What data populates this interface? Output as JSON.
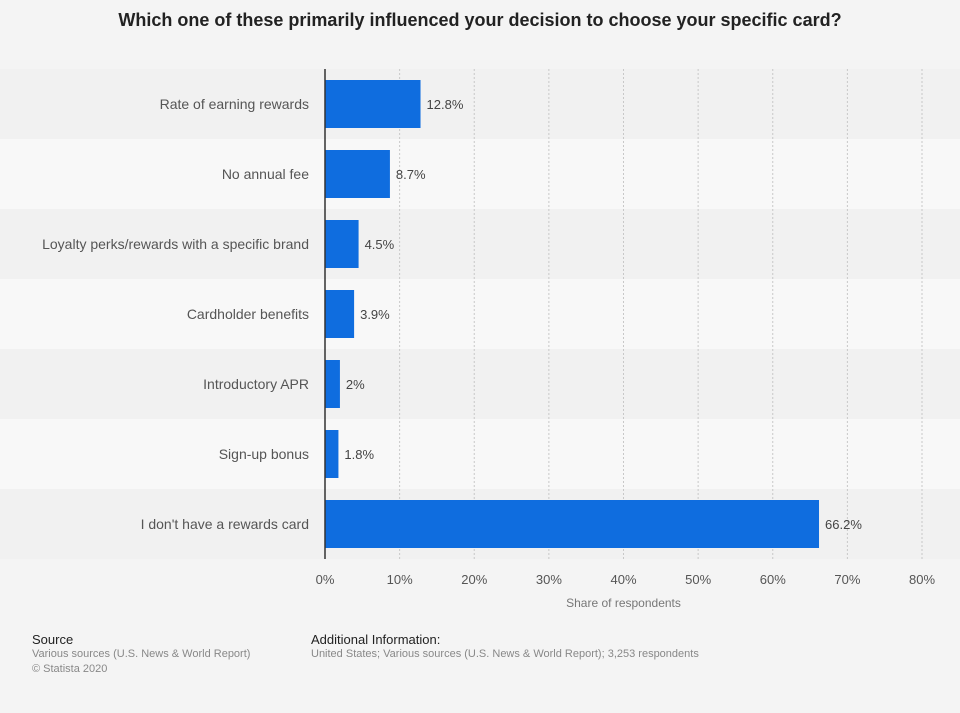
{
  "chart_data": {
    "type": "bar",
    "orientation": "horizontal",
    "title": "Which one of these primarily influenced your decision to choose your specific card?",
    "xlabel": "Share of respondents",
    "ylabel": "",
    "categories": [
      "Rate of earning rewards",
      "No annual fee",
      "Loyalty perks/rewards with a specific brand",
      "Cardholder benefits",
      "Introductory APR",
      "Sign-up bonus",
      "I don't have a rewards card"
    ],
    "values": [
      12.8,
      8.7,
      4.5,
      3.9,
      2,
      1.8,
      66.2
    ],
    "value_labels": [
      "12.8%",
      "8.7%",
      "4.5%",
      "3.9%",
      "2%",
      "1.8%",
      "66.2%"
    ],
    "xlim": [
      0,
      80
    ],
    "xticks": [
      0,
      10,
      20,
      30,
      40,
      50,
      60,
      70,
      80
    ],
    "xtick_labels": [
      "0%",
      "10%",
      "20%",
      "30%",
      "40%",
      "50%",
      "60%",
      "70%",
      "80%"
    ],
    "grid": true,
    "bar_color": "#0f6ddf"
  },
  "footer": {
    "source_heading": "Source",
    "source_text": "Various sources (U.S. News & World Report)",
    "copyright": "© Statista 2020",
    "info_heading": "Additional Information:",
    "info_text": "United States; Various sources (U.S. News & World Report); 3,253 respondents"
  }
}
